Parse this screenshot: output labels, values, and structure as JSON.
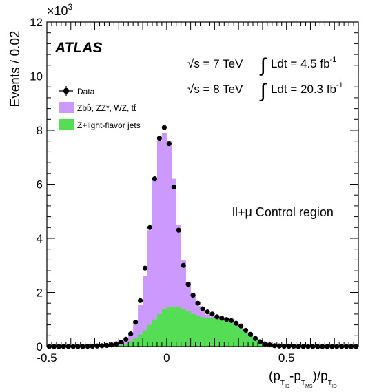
{
  "chart_data": {
    "type": "histogram",
    "experiment_label": "ATLAS",
    "energy_lines": [
      {
        "sqrt_s": "√s = 7 TeV",
        "lumi_text": "Ldt = 4.5 fb",
        "lumi_exp": "-1"
      },
      {
        "sqrt_s": "√s = 8 TeV",
        "lumi_text": "Ldt = 20.3 fb",
        "lumi_exp": "-1"
      }
    ],
    "region_label": "ll+μ Control region",
    "ylabel": "Events / 0.02",
    "y_multiplier": "×10",
    "y_multiplier_exp": "3",
    "xlabel": "(p_T_ID - p_T_MS)/p_T_ID",
    "xlim": [
      -0.5,
      0.8
    ],
    "ylim": [
      0,
      12
    ],
    "x_ticks": [
      -0.5,
      0,
      0.5
    ],
    "x_tick_labels": [
      "-0.5",
      "0",
      "0.5"
    ],
    "y_ticks": [
      0,
      2,
      4,
      6,
      8,
      10,
      12
    ],
    "y_tick_labels": [
      "0",
      "2",
      "4",
      "6",
      "8",
      "10",
      "12"
    ],
    "grid": false,
    "legend_placement": "left",
    "legend": [
      {
        "label": "Data",
        "kind": "marker"
      },
      {
        "label": "Zbb̄, ZZ*,  WZ,  tt̄",
        "kind": "fill"
      },
      {
        "label": "Z+light-flavor jets",
        "kind": "fill"
      }
    ],
    "colors": {
      "stack_top": "#cc99ff",
      "stack_bottom": "#55dd55",
      "data": "#000000"
    },
    "bin_width": 0.02,
    "bin_lowedges": [
      -0.5,
      -0.48,
      -0.46,
      -0.44,
      -0.42,
      -0.4,
      -0.38,
      -0.36,
      -0.34,
      -0.32,
      -0.3,
      -0.28,
      -0.26,
      -0.24,
      -0.22,
      -0.2,
      -0.18,
      -0.16,
      -0.14,
      -0.12,
      -0.1,
      -0.08,
      -0.06,
      -0.04,
      -0.02,
      0.0,
      0.02,
      0.04,
      0.06,
      0.08,
      0.1,
      0.12,
      0.14,
      0.16,
      0.18,
      0.2,
      0.22,
      0.24,
      0.26,
      0.28,
      0.3,
      0.32,
      0.34,
      0.36,
      0.38,
      0.4,
      0.42,
      0.44,
      0.46,
      0.48,
      0.5,
      0.52,
      0.54,
      0.56,
      0.58,
      0.6,
      0.62,
      0.64,
      0.66,
      0.68,
      0.7,
      0.72,
      0.74,
      0.76,
      0.78
    ],
    "series": [
      {
        "name": "Z+light-flavor jets",
        "values": [
          0,
          0,
          0,
          0,
          0,
          0,
          0,
          0,
          0,
          0,
          0,
          0,
          0,
          0.01,
          0.03,
          0.05,
          0.1,
          0.2,
          0.32,
          0.45,
          0.6,
          0.8,
          1.0,
          1.2,
          1.38,
          1.45,
          1.48,
          1.45,
          1.38,
          1.3,
          1.2,
          1.12,
          1.08,
          1.06,
          1.04,
          1.03,
          1.0,
          0.95,
          0.88,
          0.78,
          0.66,
          0.52,
          0.38,
          0.25,
          0.14,
          0.07,
          0.03,
          0.01,
          0,
          0,
          0,
          0,
          0,
          0,
          0,
          0,
          0,
          0,
          0,
          0,
          0,
          0,
          0,
          0,
          0
        ]
      },
      {
        "name": "Zbb̄, ZZ*,  WZ,  tt̄ (stack total)",
        "values": [
          0,
          0,
          0,
          0,
          0,
          0,
          0,
          0,
          0.01,
          0.01,
          0.02,
          0.03,
          0.04,
          0.06,
          0.1,
          0.16,
          0.26,
          0.45,
          0.85,
          1.55,
          2.6,
          4.3,
          6.2,
          7.6,
          7.9,
          7.6,
          6.2,
          4.5,
          3.2,
          2.4,
          1.85,
          1.5,
          1.32,
          1.18,
          1.1,
          1.06,
          1.02,
          0.98,
          0.92,
          0.82,
          0.7,
          0.55,
          0.4,
          0.27,
          0.16,
          0.09,
          0.05,
          0.03,
          0.02,
          0.01,
          0.01,
          0.01,
          0,
          0,
          0,
          0,
          0,
          0,
          0,
          0,
          0,
          0,
          0,
          0,
          0
        ]
      },
      {
        "name": "Data",
        "values": [
          0,
          0,
          0,
          0,
          0,
          0,
          0,
          0,
          0.01,
          0.01,
          0.02,
          0.03,
          0.04,
          0.06,
          0.1,
          0.16,
          0.27,
          0.47,
          0.9,
          1.7,
          2.9,
          4.4,
          6.2,
          7.7,
          8.1,
          7.5,
          5.9,
          4.3,
          3.0,
          2.3,
          1.9,
          1.6,
          1.4,
          1.28,
          1.2,
          1.1,
          1.05,
          1.0,
          0.96,
          0.86,
          0.76,
          0.6,
          0.45,
          0.3,
          0.18,
          0.1,
          0.06,
          0.03,
          0.02,
          0.01,
          0.01,
          0.01,
          0,
          0,
          0,
          0,
          0,
          0,
          0,
          0,
          0,
          0,
          0,
          0,
          0
        ]
      }
    ]
  }
}
